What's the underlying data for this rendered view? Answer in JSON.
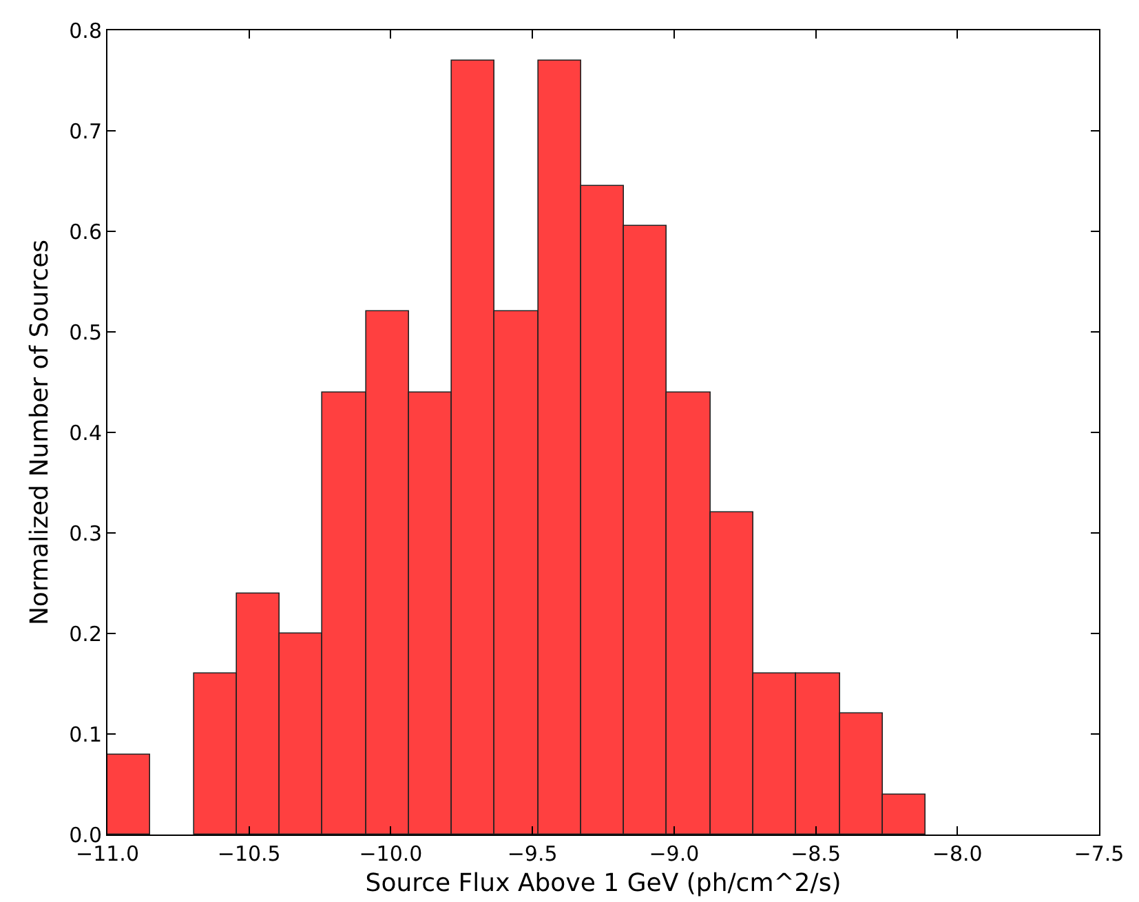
{
  "chart_data": {
    "type": "histogram",
    "xlabel": "Source Flux Above 1 GeV (ph/cm^2/s)",
    "ylabel": "Normalized Number of Sources",
    "bins": [
      -11.0,
      -10.848,
      -10.696,
      -10.544,
      -10.392,
      -10.24,
      -10.088,
      -9.936,
      -9.784,
      -9.632,
      -9.48,
      -9.328,
      -9.176,
      -9.024,
      -8.872,
      -8.72,
      -8.568,
      -8.416,
      -8.264,
      -8.112
    ],
    "values": [
      0.08,
      0,
      0.16,
      0.24,
      0.2,
      0.44,
      0.52,
      0.44,
      0.77,
      0.52,
      0.77,
      0.645,
      0.605,
      0.44,
      0.32,
      0.16,
      0.16,
      0.12,
      0.04
    ],
    "color": "#ff4040",
    "xlim": [
      -11.0,
      -7.5
    ],
    "xticks": [
      {
        "value": -11.0,
        "label": "−11.0"
      },
      {
        "value": -10.5,
        "label": "−10.5"
      },
      {
        "value": -10.0,
        "label": "−10.0"
      },
      {
        "value": -9.5,
        "label": "−9.5"
      },
      {
        "value": -9.0,
        "label": "−9.0"
      },
      {
        "value": -8.5,
        "label": "−8.5"
      },
      {
        "value": -8.0,
        "label": "−8.0"
      },
      {
        "value": -7.5,
        "label": "−7.5"
      }
    ],
    "ylim": [
      0,
      0.8
    ],
    "yticks": [
      {
        "value": 0,
        "label": "0.0"
      },
      0.1,
      0.2,
      0.3,
      0.4,
      0.5,
      0.6,
      0.7,
      0.8
    ],
    "grid": false
  }
}
